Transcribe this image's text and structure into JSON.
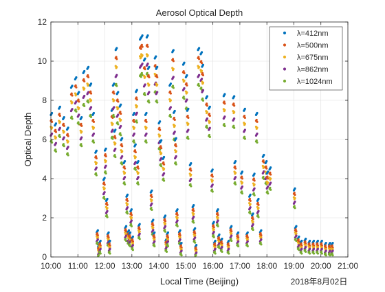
{
  "chart_data": {
    "type": "scatter",
    "title": "Aerosol Optical Depth",
    "xlabel": "Local Time (Beijing)",
    "ylabel": "Optical Depth",
    "date_label": "2018年8月02日",
    "x_unit": "hours (local time)",
    "xlim": [
      10,
      21
    ],
    "ylim": [
      0,
      12
    ],
    "x_ticks": [
      10,
      11,
      12,
      13,
      14,
      15,
      16,
      17,
      18,
      19,
      20,
      21
    ],
    "x_tick_labels": [
      "10:00",
      "11:00",
      "12:00",
      "13:00",
      "14:00",
      "15:00",
      "16:00",
      "17:00",
      "18:00",
      "19:00",
      "20:00",
      "21:00"
    ],
    "y_ticks": [
      0,
      2,
      4,
      6,
      8,
      10,
      12
    ],
    "y_tick_labels": [
      "0",
      "2",
      "4",
      "6",
      "8",
      "10",
      "12"
    ],
    "grid": true,
    "legend_position": "top-right",
    "colors": [
      "#0072BD",
      "#D95319",
      "#EDB120",
      "#7E2F8E",
      "#77AC30"
    ],
    "series": [
      {
        "name": "λ=412nm",
        "color": "#0072BD"
      },
      {
        "name": "λ=500nm",
        "color": "#D95319"
      },
      {
        "name": "λ=675nm",
        "color": "#EDB120"
      },
      {
        "name": "λ=862nm",
        "color": "#7E2F8E"
      },
      {
        "name": "λ=1024nm",
        "color": "#77AC30"
      }
    ],
    "samples": [
      [
        10.0,
        6.6
      ],
      [
        10.15,
        6.1
      ],
      [
        10.3,
        6.9
      ],
      [
        10.45,
        6.4
      ],
      [
        10.6,
        5.9
      ],
      [
        10.75,
        7.9
      ],
      [
        10.9,
        8.3
      ],
      [
        11.0,
        7.6
      ],
      [
        11.1,
        6.4
      ],
      [
        11.2,
        8.6
      ],
      [
        11.35,
        8.8
      ],
      [
        11.45,
        8.0
      ],
      [
        11.55,
        6.6
      ],
      [
        11.65,
        4.8
      ],
      [
        11.7,
        1.0
      ],
      [
        11.75,
        0.3
      ],
      [
        11.8,
        0.5
      ],
      [
        11.95,
        3.5
      ],
      [
        12.0,
        4.9
      ],
      [
        12.05,
        2.5
      ],
      [
        12.1,
        0.9
      ],
      [
        12.15,
        0.5
      ],
      [
        12.25,
        6.8
      ],
      [
        12.3,
        8.0
      ],
      [
        12.35,
        5.8
      ],
      [
        12.4,
        9.7
      ],
      [
        12.45,
        7.6
      ],
      [
        12.55,
        7.0
      ],
      [
        12.6,
        5.4
      ],
      [
        12.7,
        4.3
      ],
      [
        12.75,
        1.2
      ],
      [
        12.8,
        2.7
      ],
      [
        12.85,
        1.0
      ],
      [
        12.9,
        0.9
      ],
      [
        12.95,
        2.0
      ],
      [
        13.0,
        0.7
      ],
      [
        13.05,
        6.6
      ],
      [
        13.1,
        5.1
      ],
      [
        13.15,
        7.7
      ],
      [
        13.2,
        4.3
      ],
      [
        13.25,
        1.3
      ],
      [
        13.3,
        10.2
      ],
      [
        13.35,
        10.3
      ],
      [
        13.45,
        9.2
      ],
      [
        13.5,
        6.6
      ],
      [
        13.55,
        10.3
      ],
      [
        13.6,
        8.8
      ],
      [
        13.7,
        2.9
      ],
      [
        13.75,
        1.5
      ],
      [
        13.8,
        0.9
      ],
      [
        13.85,
        9.3
      ],
      [
        13.9,
        8.8
      ],
      [
        14.0,
        6.2
      ],
      [
        14.05,
        5.3
      ],
      [
        14.15,
        4.5
      ],
      [
        14.2,
        1.7
      ],
      [
        14.25,
        0.6
      ],
      [
        14.3,
        0.9
      ],
      [
        14.4,
        8.0
      ],
      [
        14.5,
        9.6
      ],
      [
        14.55,
        6.7
      ],
      [
        14.6,
        5.4
      ],
      [
        14.65,
        2.0
      ],
      [
        14.75,
        1.0
      ],
      [
        14.8,
        0.4
      ],
      [
        14.9,
        9.0
      ],
      [
        15.0,
        8.4
      ],
      [
        15.05,
        6.8
      ],
      [
        15.15,
        4.2
      ],
      [
        15.25,
        2.2
      ],
      [
        15.3,
        1.1
      ],
      [
        15.35,
        0.3
      ],
      [
        15.45,
        9.7
      ],
      [
        15.55,
        9.5
      ],
      [
        15.6,
        8.9
      ],
      [
        15.75,
        7.4
      ],
      [
        15.85,
        6.9
      ],
      [
        15.95,
        3.9
      ],
      [
        16.0,
        1.4
      ],
      [
        16.05,
        0.5
      ],
      [
        16.15,
        2.0
      ],
      [
        16.2,
        0.8
      ],
      [
        16.3,
        0.6
      ],
      [
        16.4,
        7.5
      ],
      [
        16.55,
        0.5
      ],
      [
        16.65,
        1.2
      ],
      [
        16.75,
        7.4
      ],
      [
        16.8,
        4.3
      ],
      [
        16.9,
        0.9
      ],
      [
        17.05,
        3.8
      ],
      [
        17.15,
        6.8
      ],
      [
        17.25,
        0.9
      ],
      [
        17.35,
        2.7
      ],
      [
        17.45,
        1.8
      ],
      [
        17.5,
        3.7
      ],
      [
        17.6,
        6.6
      ],
      [
        17.65,
        2.5
      ],
      [
        17.75,
        1.0
      ],
      [
        17.85,
        4.6
      ],
      [
        17.95,
        4.3
      ],
      [
        18.0,
        3.8
      ],
      [
        18.1,
        4.0
      ],
      [
        19.0,
        3.0
      ],
      [
        19.05,
        1.2
      ],
      [
        19.15,
        0.7
      ],
      [
        19.25,
        0.5
      ],
      [
        19.4,
        0.6
      ],
      [
        19.55,
        0.5
      ],
      [
        19.7,
        0.5
      ],
      [
        19.85,
        0.5
      ],
      [
        20.0,
        0.5
      ],
      [
        20.15,
        0.4
      ],
      [
        20.3,
        0.4
      ],
      [
        20.4,
        0.4
      ]
    ]
  }
}
